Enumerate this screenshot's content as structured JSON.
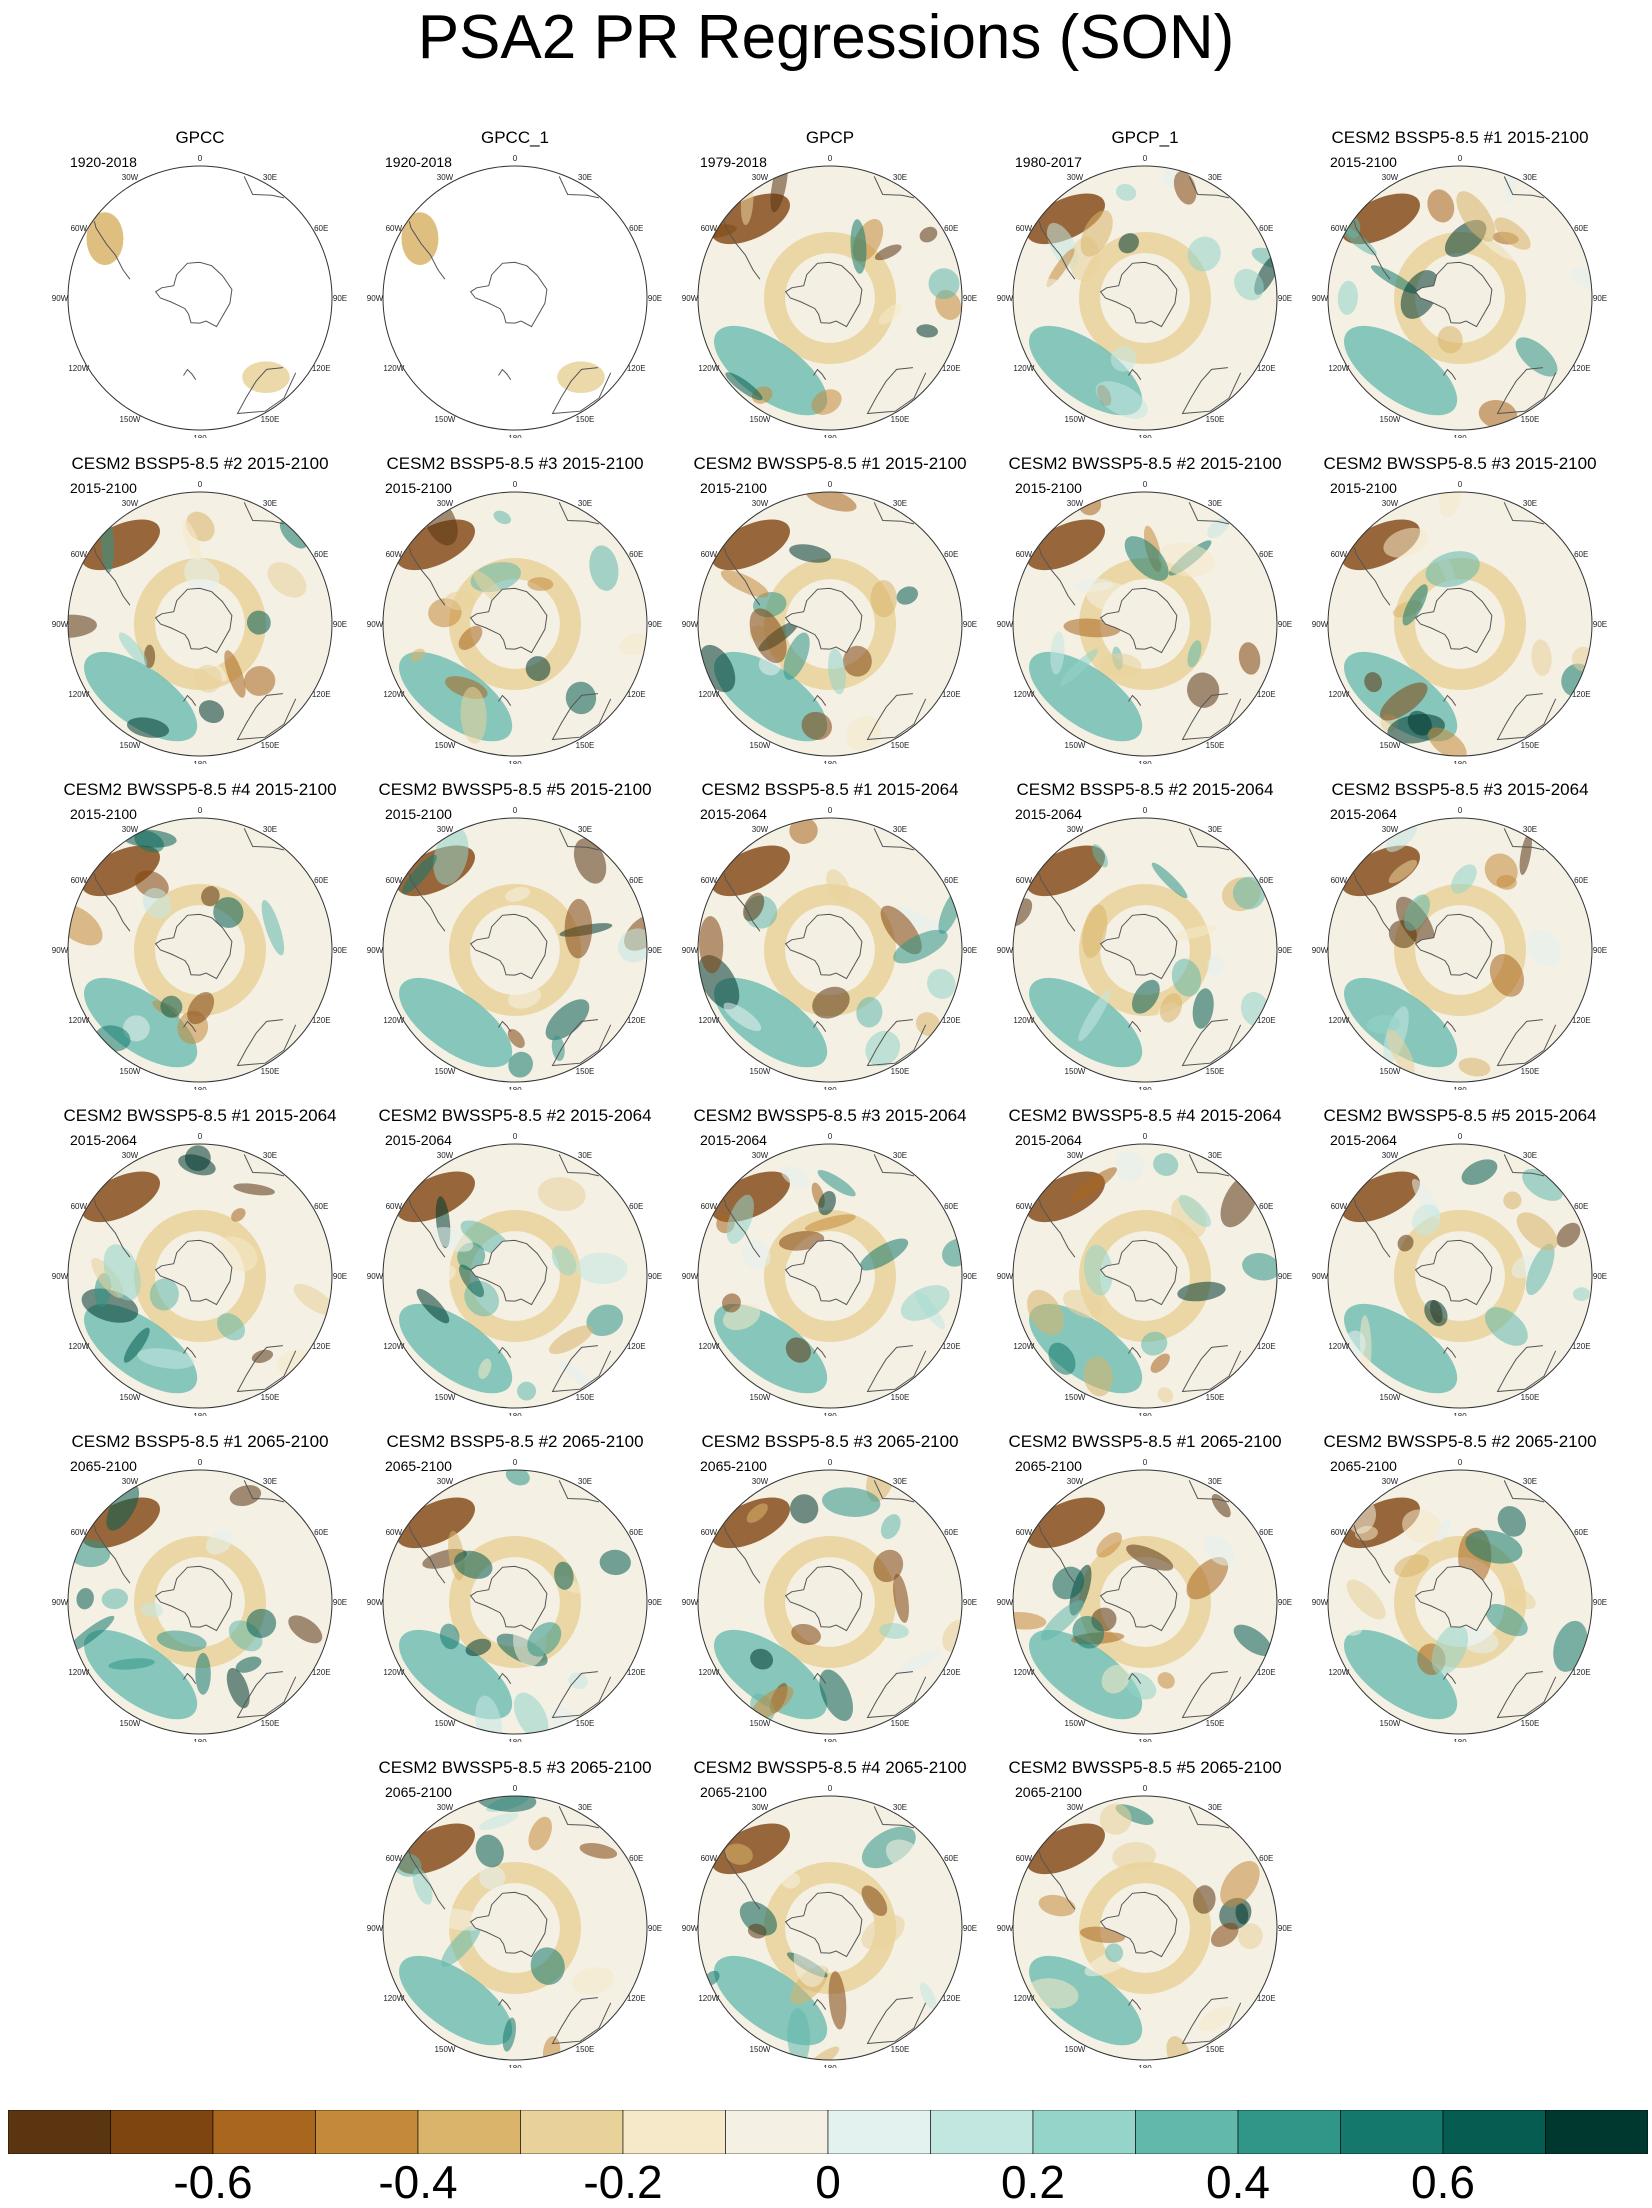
{
  "figure": {
    "title": "PSA2 PR Regressions (SON)"
  },
  "panels": [
    {
      "title": "GPCC",
      "period": "1920-2018",
      "kind": "obs_land"
    },
    {
      "title": "GPCC_1",
      "period": "1920-2018",
      "kind": "obs_land"
    },
    {
      "title": "GPCP",
      "period": "1979-2018",
      "kind": "obs_full"
    },
    {
      "title": "GPCP_1",
      "period": "1980-2017",
      "kind": "obs_full"
    },
    {
      "title": "CESM2 BSSP5-8.5 #1 2015-2100",
      "period": "2015-2100",
      "kind": "model"
    },
    {
      "title": "CESM2 BSSP5-8.5 #2 2015-2100",
      "period": "2015-2100",
      "kind": "model"
    },
    {
      "title": "CESM2 BSSP5-8.5 #3 2015-2100",
      "period": "2015-2100",
      "kind": "model"
    },
    {
      "title": "CESM2 BWSSP5-8.5 #1 2015-2100",
      "period": "2015-2100",
      "kind": "model"
    },
    {
      "title": "CESM2 BWSSP5-8.5 #2 2015-2100",
      "period": "2015-2100",
      "kind": "model"
    },
    {
      "title": "CESM2 BWSSP5-8.5 #3 2015-2100",
      "period": "2015-2100",
      "kind": "model"
    },
    {
      "title": "CESM2 BWSSP5-8.5 #4 2015-2100",
      "period": "2015-2100",
      "kind": "model"
    },
    {
      "title": "CESM2 BWSSP5-8.5 #5 2015-2100",
      "period": "2015-2100",
      "kind": "model"
    },
    {
      "title": "CESM2 BSSP5-8.5 #1 2015-2064",
      "period": "2015-2064",
      "kind": "model"
    },
    {
      "title": "CESM2 BSSP5-8.5 #2 2015-2064",
      "period": "2015-2064",
      "kind": "model"
    },
    {
      "title": "CESM2 BSSP5-8.5 #3 2015-2064",
      "period": "2015-2064",
      "kind": "model"
    },
    {
      "title": "CESM2 BWSSP5-8.5 #1 2015-2064",
      "period": "2015-2064",
      "kind": "model"
    },
    {
      "title": "CESM2 BWSSP5-8.5 #2 2015-2064",
      "period": "2015-2064",
      "kind": "model"
    },
    {
      "title": "CESM2 BWSSP5-8.5 #3 2015-2064",
      "period": "2015-2064",
      "kind": "model"
    },
    {
      "title": "CESM2 BWSSP5-8.5 #4 2015-2064",
      "period": "2015-2064",
      "kind": "model"
    },
    {
      "title": "CESM2 BWSSP5-8.5 #5 2015-2064",
      "period": "2015-2064",
      "kind": "model"
    },
    {
      "title": "CESM2 BSSP5-8.5 #1 2065-2100",
      "period": "2065-2100",
      "kind": "model"
    },
    {
      "title": "CESM2 BSSP5-8.5 #2 2065-2100",
      "period": "2065-2100",
      "kind": "model"
    },
    {
      "title": "CESM2 BSSP5-8.5 #3 2065-2100",
      "period": "2065-2100",
      "kind": "model"
    },
    {
      "title": "CESM2 BWSSP5-8.5 #1 2065-2100",
      "period": "2065-2100",
      "kind": "model"
    },
    {
      "title": "CESM2 BWSSP5-8.5 #2 2065-2100",
      "period": "2065-2100",
      "kind": "model"
    },
    {
      "title": "CESM2 BWSSP5-8.5 #3 2065-2100",
      "period": "2065-2100",
      "kind": "model"
    },
    {
      "title": "CESM2 BWSSP5-8.5 #4 2065-2100",
      "period": "2065-2100",
      "kind": "model"
    },
    {
      "title": "CESM2 BWSSP5-8.5 #5 2065-2100",
      "period": "2065-2100",
      "kind": "model"
    }
  ],
  "lon_labels": [
    "0",
    "30E",
    "60E",
    "90E",
    "120E",
    "150E",
    "180",
    "150W",
    "120W",
    "90W",
    "60W",
    "30W"
  ],
  "colorbar": {
    "colors": [
      "#5a3510",
      "#7f4510",
      "#a8661e",
      "#c48a3a",
      "#d9b46a",
      "#e9d29a",
      "#f5e9c9",
      "#f4f0e4",
      "#e3f1ef",
      "#c2e7e1",
      "#94d4c9",
      "#63b8ac",
      "#2f9688",
      "#14786c",
      "#065c51",
      "#00382f"
    ],
    "labels": [
      "-0.6",
      "-0.4",
      "-0.2",
      "0",
      "0.2",
      "0.4",
      "0.6"
    ],
    "label_values": [
      -0.6,
      -0.4,
      -0.2,
      0,
      0.2,
      0.4,
      0.6
    ],
    "range": [
      -0.8,
      0.8
    ]
  },
  "colors": {
    "coastline": "#555555",
    "frame": "#333333",
    "land_fill": "#f4efe3"
  }
}
